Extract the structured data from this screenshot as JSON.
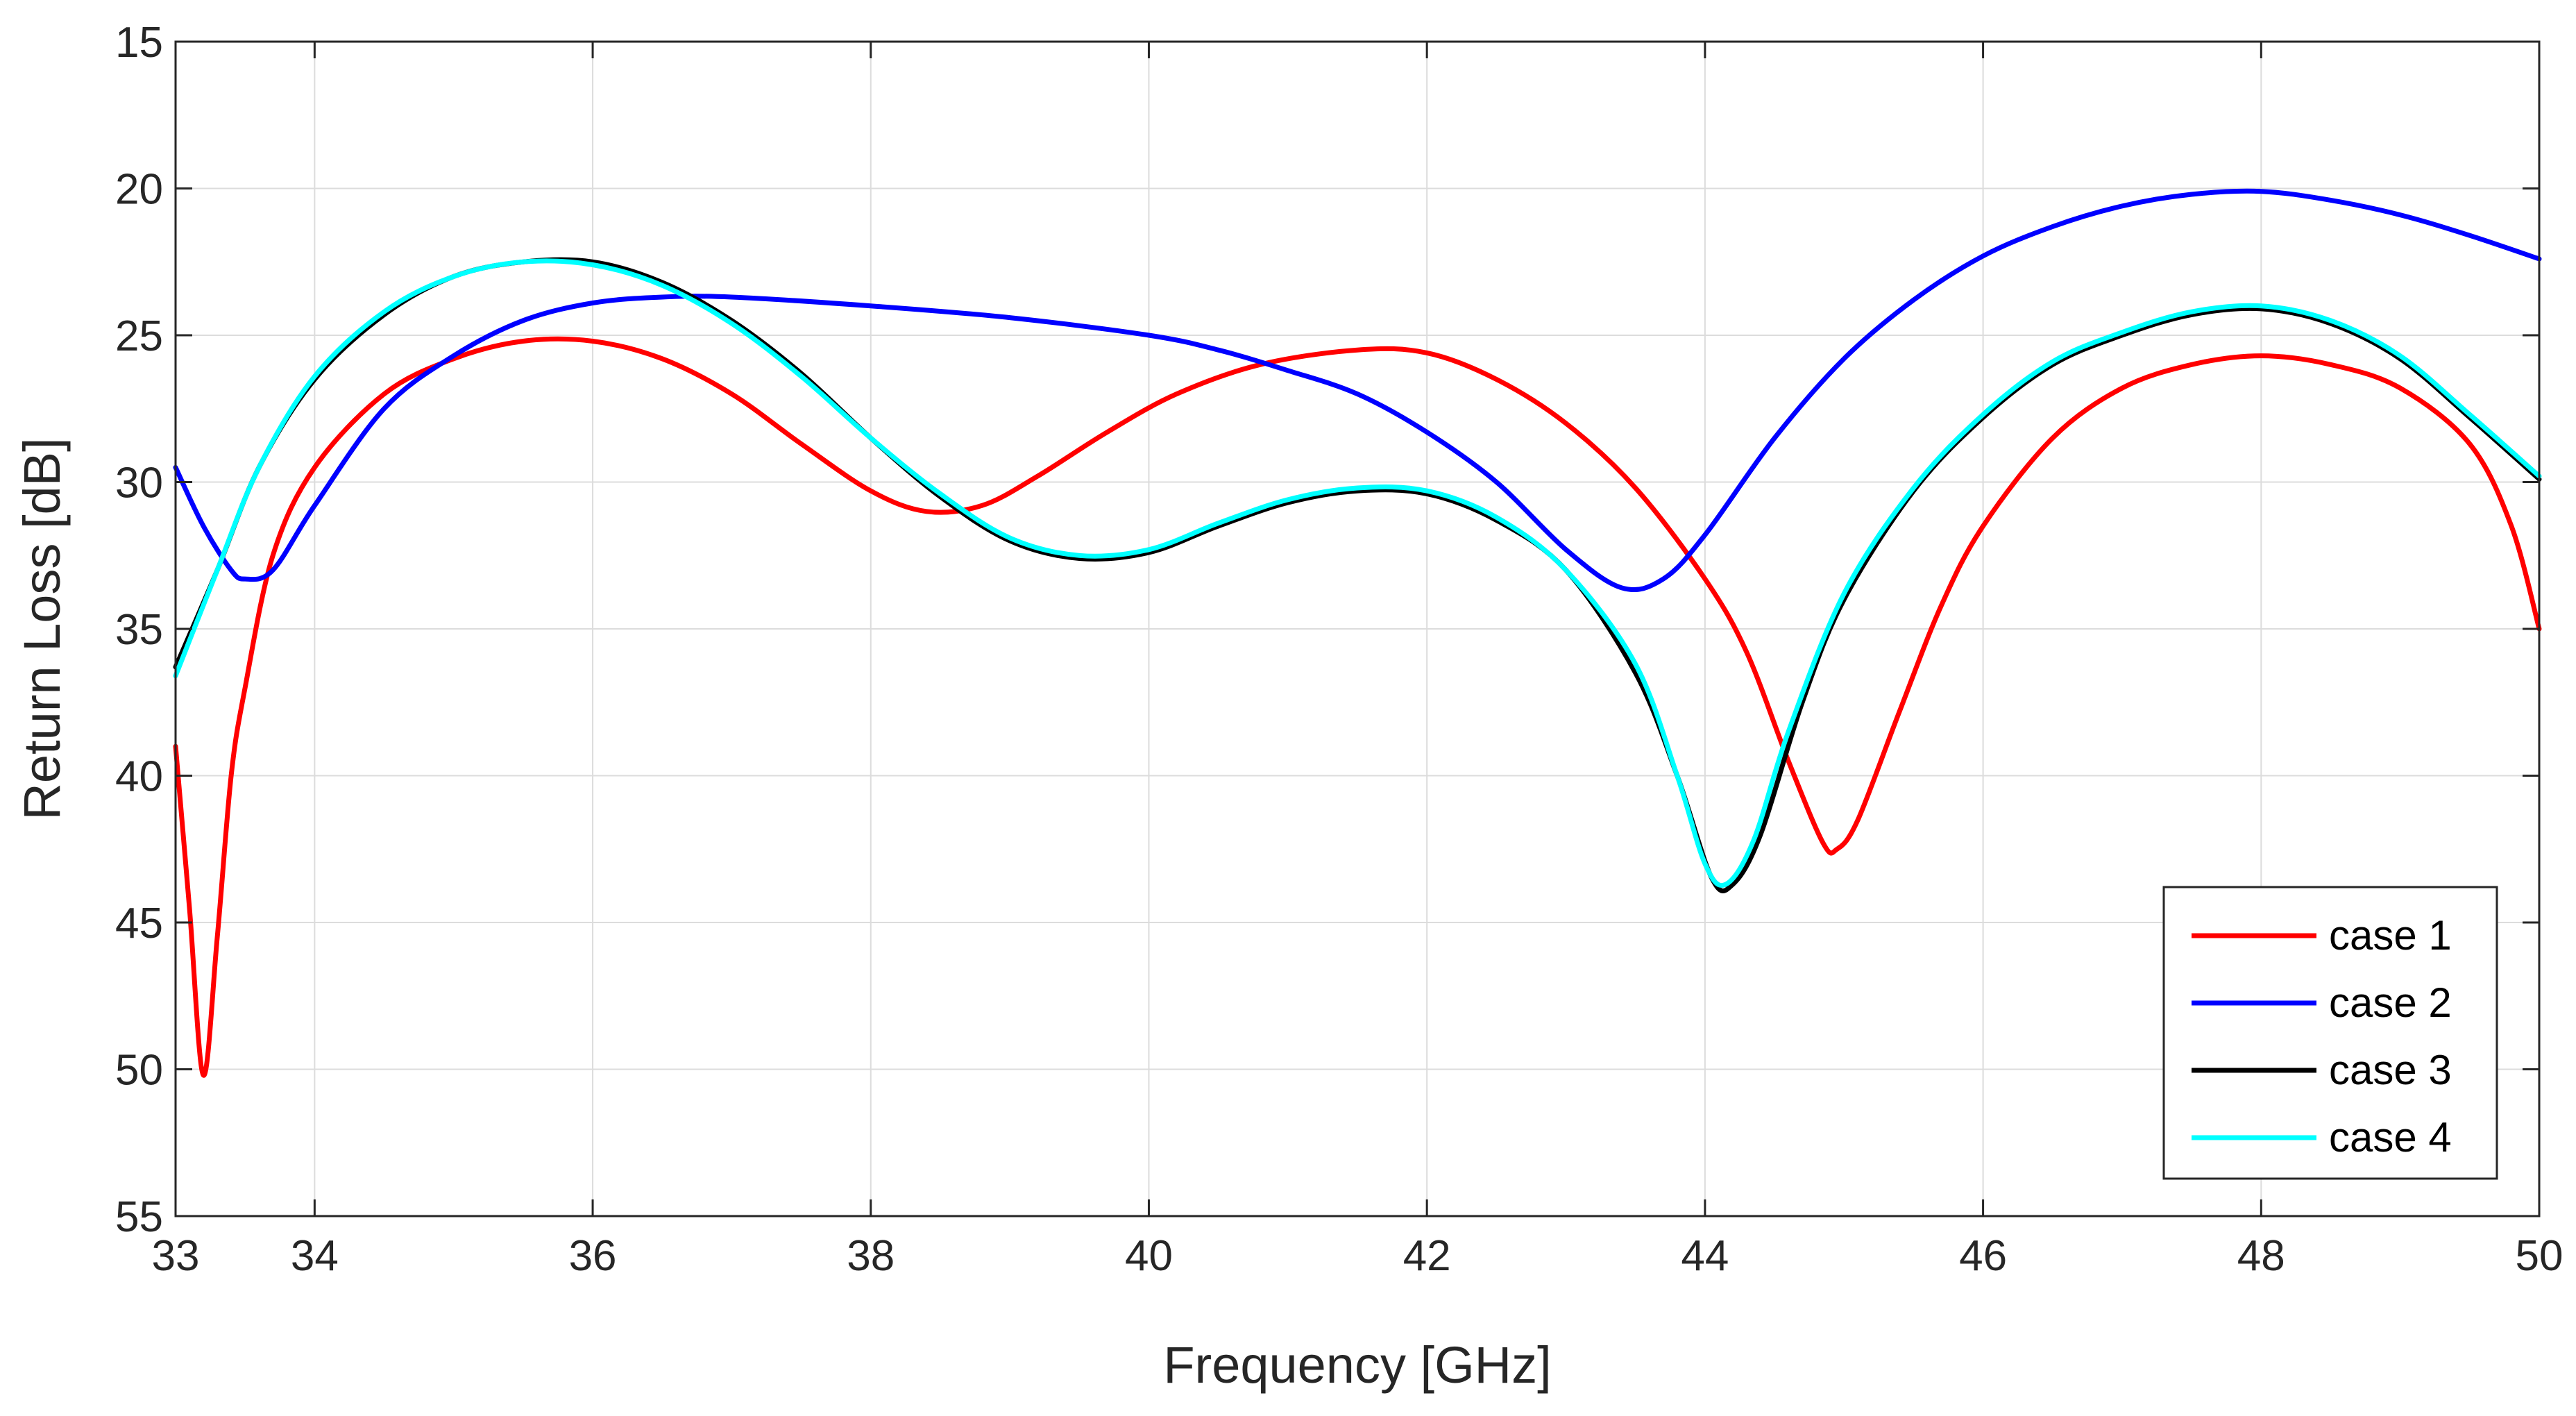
{
  "chart_data": {
    "type": "line",
    "title": "",
    "xlabel": "Frequency [GHz]",
    "ylabel": "Return Loss [dB]",
    "xlim": [
      33,
      50
    ],
    "ylim": [
      15,
      55
    ],
    "y_reversed": true,
    "grid": true,
    "legend_position": "bottom-right",
    "x_ticks": [
      33,
      34,
      36,
      38,
      40,
      42,
      44,
      46,
      48,
      50
    ],
    "x_tick_labels": [
      "33",
      "34",
      "36",
      "38",
      "40",
      "42",
      "44",
      "46",
      "48",
      "50"
    ],
    "y_ticks": [
      15,
      20,
      25,
      30,
      35,
      40,
      45,
      50,
      55
    ],
    "y_tick_labels": [
      "15",
      "20",
      "25",
      "30",
      "35",
      "40",
      "45",
      "50",
      "55"
    ],
    "series": [
      {
        "name": "case 1",
        "color": "#ff0000",
        "points": [
          [
            33.0,
            39.0
          ],
          [
            33.1,
            44.5
          ],
          [
            33.2,
            50.2
          ],
          [
            33.3,
            45.5
          ],
          [
            33.4,
            40.0
          ],
          [
            33.5,
            37.0
          ],
          [
            33.7,
            32.5
          ],
          [
            34.0,
            29.5
          ],
          [
            34.5,
            27.0
          ],
          [
            35.0,
            25.8
          ],
          [
            35.5,
            25.2
          ],
          [
            36.0,
            25.2
          ],
          [
            36.5,
            25.8
          ],
          [
            37.0,
            27.0
          ],
          [
            37.5,
            28.7
          ],
          [
            38.0,
            30.3
          ],
          [
            38.4,
            31.0
          ],
          [
            38.8,
            30.8
          ],
          [
            39.2,
            29.8
          ],
          [
            39.7,
            28.3
          ],
          [
            40.2,
            27.0
          ],
          [
            40.8,
            26.0
          ],
          [
            41.5,
            25.5
          ],
          [
            42.0,
            25.6
          ],
          [
            42.5,
            26.5
          ],
          [
            43.0,
            28.0
          ],
          [
            43.5,
            30.2
          ],
          [
            44.0,
            33.3
          ],
          [
            44.3,
            35.8
          ],
          [
            44.6,
            39.5
          ],
          [
            44.85,
            42.3
          ],
          [
            44.95,
            42.5
          ],
          [
            45.1,
            41.5
          ],
          [
            45.4,
            37.8
          ],
          [
            45.7,
            34.2
          ],
          [
            46.0,
            31.5
          ],
          [
            46.5,
            28.5
          ],
          [
            47.0,
            26.8
          ],
          [
            47.5,
            26.0
          ],
          [
            48.0,
            25.7
          ],
          [
            48.5,
            26.0
          ],
          [
            49.0,
            26.8
          ],
          [
            49.5,
            28.7
          ],
          [
            49.8,
            31.5
          ],
          [
            50.0,
            35.0
          ]
        ]
      },
      {
        "name": "case 2",
        "color": "#0000ff",
        "points": [
          [
            33.0,
            29.5
          ],
          [
            33.2,
            31.5
          ],
          [
            33.4,
            33.0
          ],
          [
            33.5,
            33.3
          ],
          [
            33.7,
            33.0
          ],
          [
            34.0,
            30.8
          ],
          [
            34.5,
            27.5
          ],
          [
            35.0,
            25.7
          ],
          [
            35.5,
            24.5
          ],
          [
            36.0,
            23.9
          ],
          [
            36.5,
            23.7
          ],
          [
            37.0,
            23.7
          ],
          [
            38.0,
            24.0
          ],
          [
            39.0,
            24.4
          ],
          [
            40.0,
            25.0
          ],
          [
            40.5,
            25.5
          ],
          [
            41.0,
            26.2
          ],
          [
            41.5,
            27.0
          ],
          [
            42.0,
            28.3
          ],
          [
            42.5,
            30.0
          ],
          [
            43.0,
            32.3
          ],
          [
            43.4,
            33.6
          ],
          [
            43.7,
            33.3
          ],
          [
            44.0,
            31.8
          ],
          [
            44.5,
            28.5
          ],
          [
            45.0,
            25.8
          ],
          [
            45.5,
            23.8
          ],
          [
            46.0,
            22.3
          ],
          [
            46.5,
            21.3
          ],
          [
            47.0,
            20.6
          ],
          [
            47.5,
            20.2
          ],
          [
            48.0,
            20.1
          ],
          [
            48.5,
            20.4
          ],
          [
            49.0,
            20.9
          ],
          [
            49.5,
            21.6
          ],
          [
            50.0,
            22.4
          ]
        ]
      },
      {
        "name": "case 3",
        "color": "#000000",
        "points": [
          [
            33.0,
            36.3
          ],
          [
            33.3,
            33.0
          ],
          [
            33.6,
            29.5
          ],
          [
            34.0,
            26.5
          ],
          [
            34.5,
            24.3
          ],
          [
            35.0,
            23.0
          ],
          [
            35.5,
            22.5
          ],
          [
            36.0,
            22.5
          ],
          [
            36.5,
            23.2
          ],
          [
            37.0,
            24.5
          ],
          [
            37.5,
            26.3
          ],
          [
            38.0,
            28.5
          ],
          [
            38.5,
            30.5
          ],
          [
            39.0,
            32.0
          ],
          [
            39.5,
            32.6
          ],
          [
            40.0,
            32.4
          ],
          [
            40.5,
            31.5
          ],
          [
            41.0,
            30.7
          ],
          [
            41.5,
            30.3
          ],
          [
            42.0,
            30.4
          ],
          [
            42.5,
            31.3
          ],
          [
            43.0,
            33.0
          ],
          [
            43.5,
            36.5
          ],
          [
            43.8,
            40.0
          ],
          [
            44.05,
            43.5
          ],
          [
            44.2,
            43.7
          ],
          [
            44.4,
            42.0
          ],
          [
            44.7,
            37.5
          ],
          [
            45.0,
            34.0
          ],
          [
            45.5,
            30.3
          ],
          [
            46.0,
            27.8
          ],
          [
            46.5,
            26.0
          ],
          [
            47.0,
            25.0
          ],
          [
            47.5,
            24.3
          ],
          [
            48.0,
            24.1
          ],
          [
            48.5,
            24.6
          ],
          [
            49.0,
            25.8
          ],
          [
            49.5,
            27.8
          ],
          [
            50.0,
            29.9
          ]
        ]
      },
      {
        "name": "case 4",
        "color": "#00ffff",
        "points": [
          [
            33.0,
            36.6
          ],
          [
            33.3,
            33.0
          ],
          [
            33.6,
            29.5
          ],
          [
            34.0,
            26.4
          ],
          [
            34.5,
            24.2
          ],
          [
            35.0,
            23.0
          ],
          [
            35.5,
            22.5
          ],
          [
            36.0,
            22.6
          ],
          [
            36.5,
            23.3
          ],
          [
            37.0,
            24.6
          ],
          [
            37.5,
            26.4
          ],
          [
            38.0,
            28.5
          ],
          [
            38.5,
            30.4
          ],
          [
            39.0,
            31.9
          ],
          [
            39.5,
            32.5
          ],
          [
            40.0,
            32.3
          ],
          [
            40.5,
            31.4
          ],
          [
            41.0,
            30.6
          ],
          [
            41.5,
            30.2
          ],
          [
            42.0,
            30.3
          ],
          [
            42.5,
            31.2
          ],
          [
            43.0,
            33.0
          ],
          [
            43.5,
            36.2
          ],
          [
            43.8,
            40.0
          ],
          [
            44.0,
            43.0
          ],
          [
            44.15,
            43.7
          ],
          [
            44.35,
            42.2
          ],
          [
            44.6,
            38.5
          ],
          [
            45.0,
            33.8
          ],
          [
            45.5,
            30.2
          ],
          [
            46.0,
            27.7
          ],
          [
            46.5,
            25.9
          ],
          [
            47.0,
            24.9
          ],
          [
            47.5,
            24.2
          ],
          [
            48.0,
            24.0
          ],
          [
            48.5,
            24.5
          ],
          [
            49.0,
            25.7
          ],
          [
            49.5,
            27.7
          ],
          [
            50.0,
            29.8
          ]
        ]
      }
    ]
  }
}
